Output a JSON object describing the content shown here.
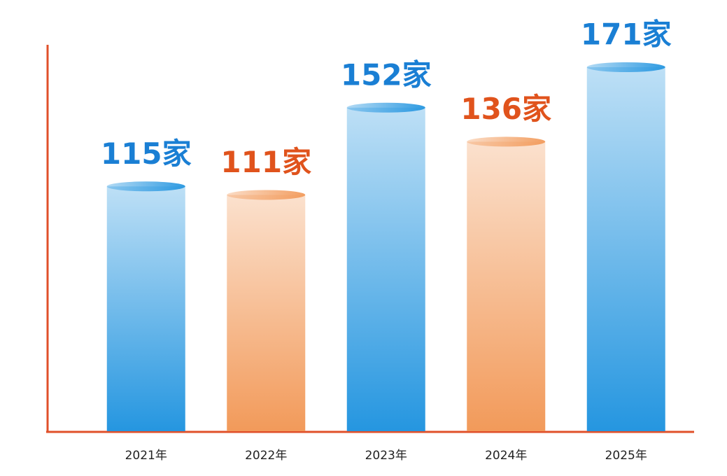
{
  "chart_data": {
    "type": "bar",
    "categories": [
      "2021年",
      "2022年",
      "2023年",
      "2024年",
      "2025年"
    ],
    "values": [
      115,
      111,
      152,
      136,
      171
    ],
    "value_labels": [
      "115家",
      "111家",
      "152家",
      "136家",
      "171家"
    ],
    "colors": [
      "#2596e0",
      "#f29a5a",
      "#2596e0",
      "#f29a5a",
      "#2596e0"
    ],
    "label_colors": [
      "#1a7fd4",
      "#e0531c",
      "#1a7fd4",
      "#e0531c",
      "#1a7fd4"
    ]
  }
}
